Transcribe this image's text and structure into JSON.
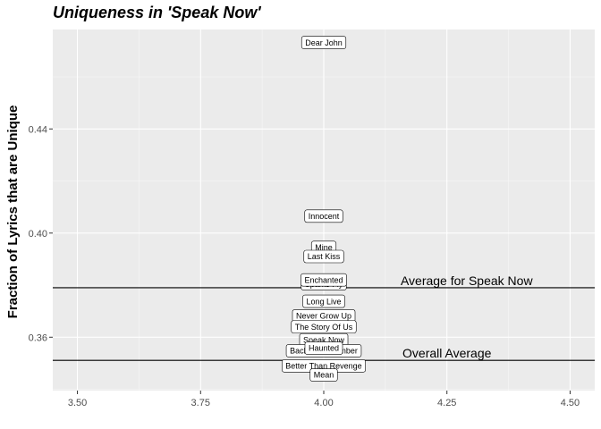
{
  "chart_data": {
    "type": "scatter",
    "title": "Uniqueness in 'Speak Now'",
    "xlabel": "",
    "ylabel": "Fraction of Lyrics that are Unique",
    "xlim": [
      3.45,
      4.55
    ],
    "ylim": [
      0.3395,
      0.4782
    ],
    "x_ticks": [
      3.5,
      3.75,
      4.0,
      4.25,
      4.5
    ],
    "x_tick_labels": [
      "3.50",
      "3.75",
      "4.00",
      "4.25",
      "4.50"
    ],
    "y_ticks": [
      0.36,
      0.4,
      0.44
    ],
    "y_tick_labels": [
      "0.36",
      "0.40",
      "0.44"
    ],
    "grid": true,
    "point_color": "#e0ccf5",
    "points": [
      {
        "label": "Dear John",
        "x": 4.0,
        "y": 0.4732
      },
      {
        "label": "Innocent",
        "x": 4.0,
        "y": 0.4065
      },
      {
        "label": "Mine",
        "x": 4.0,
        "y": 0.3945
      },
      {
        "label": "Last Kiss",
        "x": 4.0,
        "y": 0.391
      },
      {
        "label": "Sparks Fly",
        "x": 4.0,
        "y": 0.3805
      },
      {
        "label": "Enchanted",
        "x": 4.0,
        "y": 0.382
      },
      {
        "label": "Long Live",
        "x": 4.0,
        "y": 0.3738
      },
      {
        "label": "Never Grow Up",
        "x": 4.0,
        "y": 0.3682
      },
      {
        "label": "The Story Of Us",
        "x": 4.0,
        "y": 0.364
      },
      {
        "label": "Speak Now",
        "x": 4.0,
        "y": 0.359
      },
      {
        "label": "Back To December",
        "x": 4.0,
        "y": 0.3548
      },
      {
        "label": "Haunted",
        "x": 4.0,
        "y": 0.3558
      },
      {
        "label": "Better Than Revenge",
        "x": 4.0,
        "y": 0.349
      },
      {
        "label": "Mean",
        "x": 4.0,
        "y": 0.3455
      }
    ],
    "hlines": [
      {
        "label": "Average for Speak Now",
        "y": 0.379,
        "label_x": 4.29
      },
      {
        "label": "Overall Average",
        "y": 0.3511,
        "label_x": 4.25
      }
    ]
  }
}
